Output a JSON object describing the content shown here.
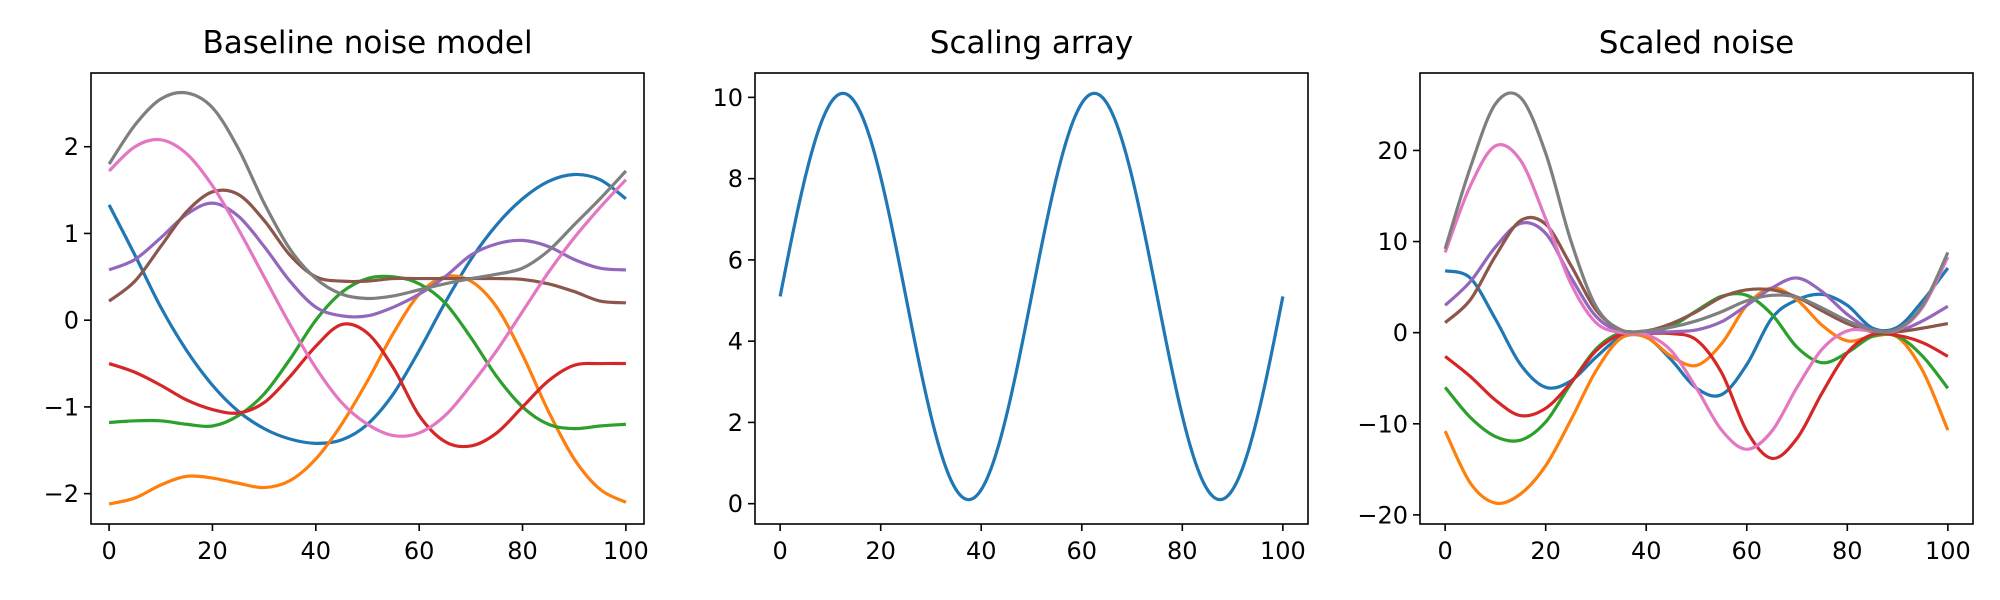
{
  "chart_data": [
    {
      "type": "line",
      "title": "Baseline noise model",
      "xlabel": "",
      "ylabel": "",
      "xlim": [
        -3.5,
        103.5
      ],
      "ylim": [
        -2.35,
        2.85
      ],
      "xticks": [
        0,
        20,
        40,
        60,
        80,
        100
      ],
      "yticks": [
        -2,
        -1,
        0,
        1,
        2
      ],
      "grid": false,
      "legend": "none",
      "x": [
        0,
        5,
        10,
        15,
        20,
        25,
        30,
        35,
        40,
        45,
        50,
        55,
        60,
        65,
        70,
        75,
        80,
        85,
        90,
        95,
        100
      ],
      "series": [
        {
          "color": "#1f77b4",
          "values": [
            1.33,
            0.75,
            0.15,
            -0.35,
            -0.75,
            -1.05,
            -1.25,
            -1.37,
            -1.42,
            -1.38,
            -1.2,
            -0.85,
            -0.35,
            0.2,
            0.7,
            1.1,
            1.4,
            1.6,
            1.68,
            1.62,
            1.4
          ]
        },
        {
          "color": "#ff7f0e",
          "values": [
            -2.12,
            -2.05,
            -1.9,
            -1.8,
            -1.82,
            -1.88,
            -1.93,
            -1.85,
            -1.6,
            -1.2,
            -0.7,
            -0.15,
            0.3,
            0.5,
            0.45,
            0.15,
            -0.4,
            -1.05,
            -1.6,
            -1.95,
            -2.1
          ]
        },
        {
          "color": "#2ca02c",
          "values": [
            -1.18,
            -1.16,
            -1.16,
            -1.2,
            -1.22,
            -1.1,
            -0.85,
            -0.45,
            0.0,
            0.32,
            0.48,
            0.5,
            0.42,
            0.2,
            -0.2,
            -0.65,
            -1.0,
            -1.2,
            -1.25,
            -1.22,
            -1.2
          ]
        },
        {
          "color": "#d62728",
          "values": [
            -0.5,
            -0.6,
            -0.75,
            -0.92,
            -1.03,
            -1.07,
            -0.95,
            -0.65,
            -0.3,
            -0.05,
            -0.15,
            -0.55,
            -1.1,
            -1.4,
            -1.45,
            -1.3,
            -1.0,
            -0.7,
            -0.52,
            -0.5,
            -0.5
          ]
        },
        {
          "color": "#9467bd",
          "values": [
            0.58,
            0.7,
            0.95,
            1.22,
            1.35,
            1.2,
            0.85,
            0.45,
            0.15,
            0.05,
            0.05,
            0.15,
            0.3,
            0.5,
            0.75,
            0.88,
            0.92,
            0.85,
            0.7,
            0.6,
            0.58
          ]
        },
        {
          "color": "#8c564b",
          "values": [
            0.22,
            0.45,
            0.85,
            1.25,
            1.48,
            1.45,
            1.15,
            0.75,
            0.5,
            0.45,
            0.45,
            0.48,
            0.48,
            0.48,
            0.48,
            0.48,
            0.47,
            0.42,
            0.33,
            0.22,
            0.2
          ]
        },
        {
          "color": "#e377c2",
          "values": [
            1.72,
            2.0,
            2.08,
            1.92,
            1.55,
            1.05,
            0.5,
            -0.05,
            -0.55,
            -0.95,
            -1.2,
            -1.33,
            -1.3,
            -1.1,
            -0.75,
            -0.35,
            0.1,
            0.55,
            0.95,
            1.3,
            1.62
          ]
        },
        {
          "color": "#7f7f7f",
          "values": [
            1.8,
            2.25,
            2.55,
            2.62,
            2.45,
            1.98,
            1.35,
            0.82,
            0.48,
            0.3,
            0.25,
            0.28,
            0.35,
            0.42,
            0.48,
            0.53,
            0.6,
            0.8,
            1.1,
            1.4,
            1.72
          ]
        }
      ]
    },
    {
      "type": "line",
      "title": "Scaling array",
      "xlabel": "",
      "ylabel": "",
      "xlim": [
        -5,
        105
      ],
      "ylim": [
        -0.5,
        10.6
      ],
      "xticks": [
        0,
        20,
        40,
        60,
        80,
        100
      ],
      "yticks": [
        0,
        2,
        4,
        6,
        8,
        10
      ],
      "grid": false,
      "legend": "none",
      "function": "5.1 + 5 * sin(2*pi*x/50)",
      "x": [
        0,
        5,
        10,
        12.5,
        15,
        20,
        25,
        30,
        35,
        37.5,
        40,
        45,
        50,
        55,
        60,
        62.5,
        65,
        70,
        75,
        80,
        85,
        87.5,
        90,
        95,
        100
      ],
      "series": [
        {
          "color": "#1f77b4",
          "values": [
            5.1,
            8.04,
            9.86,
            10.1,
            9.86,
            8.04,
            5.1,
            2.16,
            0.34,
            0.1,
            0.34,
            2.16,
            5.1,
            8.04,
            9.86,
            10.1,
            9.86,
            8.04,
            5.1,
            2.16,
            0.34,
            0.1,
            0.34,
            2.16,
            5.1
          ]
        }
      ]
    },
    {
      "type": "line",
      "title": "Scaled noise",
      "xlabel": "",
      "ylabel": "",
      "xlim": [
        -5,
        105
      ],
      "ylim": [
        -21,
        28.5
      ],
      "xticks": [
        0,
        20,
        40,
        60,
        80,
        100
      ],
      "yticks": [
        -20,
        -10,
        0,
        10,
        20
      ],
      "grid": false,
      "legend": "none",
      "x": [
        0,
        5,
        10,
        15,
        20,
        25,
        30,
        35,
        40,
        45,
        50,
        55,
        60,
        65,
        70,
        75,
        80,
        85,
        90,
        95,
        100
      ],
      "series": [
        {
          "color": "#1f77b4",
          "values": [
            6.8,
            6.0,
            1.5,
            -3.5,
            -6.0,
            -5.3,
            -2.7,
            -0.5,
            -0.5,
            -3.0,
            -6.1,
            -6.8,
            -3.5,
            1.6,
            3.6,
            4.2,
            3.0,
            0.5,
            0.6,
            3.5,
            7.1
          ]
        },
        {
          "color": "#ff7f0e",
          "values": [
            -10.8,
            -16.5,
            -18.7,
            -17.7,
            -14.6,
            -9.6,
            -4.2,
            -0.6,
            -0.5,
            -2.6,
            -3.6,
            -1.2,
            3.0,
            4.9,
            3.6,
            0.8,
            -0.9,
            -0.4,
            -0.5,
            -4.2,
            -10.7
          ]
        },
        {
          "color": "#2ca02c",
          "values": [
            -6.0,
            -9.3,
            -11.4,
            -11.8,
            -9.8,
            -5.6,
            -1.8,
            0.0,
            0.0,
            0.7,
            2.4,
            4.0,
            4.1,
            2.0,
            -1.6,
            -3.3,
            -2.2,
            -0.4,
            -0.4,
            -2.6,
            -6.1
          ]
        },
        {
          "color": "#d62728",
          "values": [
            -2.6,
            -4.8,
            -7.4,
            -9.1,
            -8.3,
            -5.5,
            -2.0,
            -0.2,
            -0.1,
            -0.1,
            -0.8,
            -4.4,
            -10.8,
            -13.8,
            -11.6,
            -6.6,
            -2.2,
            -0.2,
            -0.3,
            -1.1,
            -2.6
          ]
        },
        {
          "color": "#9467bd",
          "values": [
            3.0,
            5.6,
            9.4,
            12.0,
            10.9,
            6.1,
            1.8,
            0.1,
            0.0,
            0.1,
            0.3,
            1.2,
            3.0,
            4.9,
            6.0,
            4.5,
            2.0,
            0.3,
            0.2,
            1.3,
            2.9
          ]
        },
        {
          "color": "#8c564b",
          "values": [
            1.1,
            3.6,
            8.4,
            12.3,
            11.9,
            7.4,
            2.5,
            0.3,
            0.2,
            1.0,
            2.3,
            3.9,
            4.7,
            4.7,
            3.9,
            2.4,
            1.0,
            0.1,
            0.1,
            0.5,
            1.0
          ]
        },
        {
          "color": "#e377c2",
          "values": [
            8.8,
            16.1,
            20.5,
            18.9,
            12.5,
            5.4,
            1.1,
            0.0,
            -0.2,
            -2.0,
            -6.1,
            -10.7,
            -12.8,
            -10.8,
            -6.0,
            -1.8,
            0.2,
            0.2,
            0.3,
            2.8,
            8.3
          ]
        },
        {
          "color": "#7f7f7f",
          "values": [
            9.2,
            18.1,
            25.1,
            25.8,
            19.7,
            10.1,
            2.9,
            0.3,
            0.2,
            0.6,
            1.3,
            2.3,
            3.5,
            4.1,
            3.9,
            2.7,
            1.3,
            0.3,
            0.4,
            3.0,
            8.8
          ]
        }
      ]
    }
  ]
}
